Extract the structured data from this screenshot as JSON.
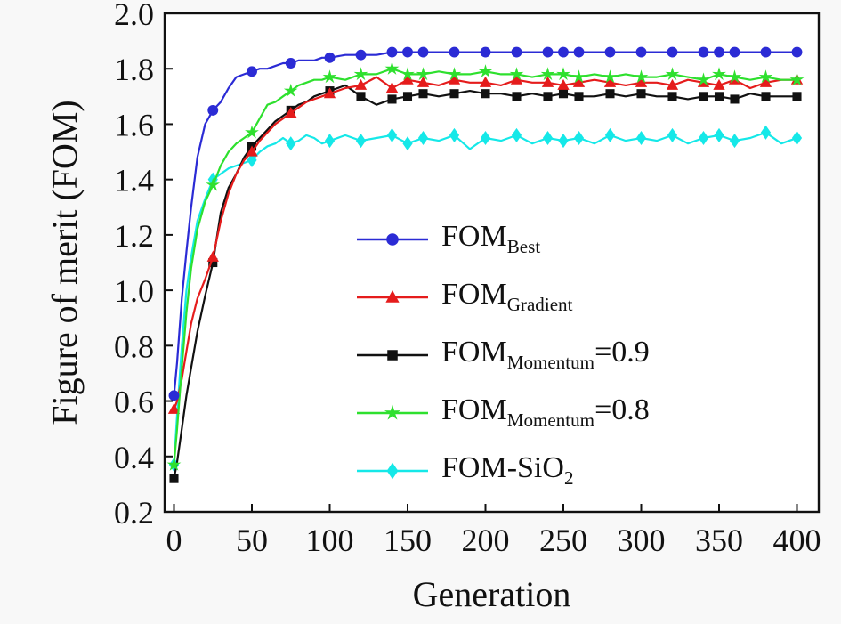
{
  "figure": {
    "background": "#f8f8f8",
    "plot_background": "#ffffff",
    "frame_color": "#111111"
  },
  "chart_data": {
    "type": "line",
    "title": "",
    "xlabel": "Generation",
    "ylabel": "Figure of merit (FOM)",
    "xlim": [
      -6,
      414
    ],
    "ylim": [
      0.2,
      2.0
    ],
    "grid": false,
    "legend_position": "inside-center-right",
    "xticks": [
      0,
      50,
      100,
      150,
      200,
      250,
      300,
      350,
      400
    ],
    "xtick_labels": [
      "0",
      "50",
      "100",
      "150",
      "200",
      "250",
      "300",
      "350",
      "400"
    ],
    "yticks": [
      0.2,
      0.4,
      0.6,
      0.8,
      1.0,
      1.2,
      1.4,
      1.6,
      1.8,
      2.0
    ],
    "ytick_labels": [
      "0.2",
      "0.4",
      "0.6",
      "0.8",
      "1.0",
      "1.2",
      "1.4",
      "1.6",
      "1.8",
      "2.0"
    ],
    "x": [
      0,
      2,
      5,
      8,
      11,
      15,
      20,
      25,
      30,
      35,
      40,
      45,
      50,
      55,
      60,
      65,
      70,
      75,
      80,
      85,
      90,
      95,
      100,
      110,
      120,
      130,
      140,
      150,
      160,
      170,
      180,
      190,
      200,
      210,
      220,
      230,
      240,
      250,
      260,
      270,
      280,
      290,
      300,
      310,
      320,
      330,
      340,
      350,
      360,
      370,
      380,
      390,
      400
    ],
    "series": [
      {
        "key": "fom-best",
        "name": "FOM_Best",
        "label": {
          "main": "FOM",
          "sub": "Best",
          "suffix": ""
        },
        "color": "#2b2bd5",
        "marker": "circle",
        "values": [
          0.62,
          0.74,
          0.97,
          1.14,
          1.3,
          1.48,
          1.6,
          1.65,
          1.68,
          1.73,
          1.77,
          1.78,
          1.79,
          1.8,
          1.8,
          1.81,
          1.82,
          1.82,
          1.83,
          1.83,
          1.83,
          1.84,
          1.84,
          1.85,
          1.85,
          1.85,
          1.86,
          1.86,
          1.86,
          1.86,
          1.86,
          1.86,
          1.86,
          1.86,
          1.86,
          1.86,
          1.86,
          1.86,
          1.86,
          1.86,
          1.86,
          1.86,
          1.86,
          1.86,
          1.86,
          1.86,
          1.86,
          1.86,
          1.86,
          1.86,
          1.86,
          1.86,
          1.86
        ]
      },
      {
        "key": "fom-gradient",
        "name": "FOM_Gradient",
        "label": {
          "main": "FOM",
          "sub": "Gradient",
          "suffix": ""
        },
        "color": "#e51c1c",
        "marker": "triangle",
        "values": [
          0.57,
          0.6,
          0.68,
          0.78,
          0.88,
          0.97,
          1.04,
          1.12,
          1.25,
          1.35,
          1.42,
          1.47,
          1.5,
          1.54,
          1.57,
          1.6,
          1.62,
          1.64,
          1.66,
          1.68,
          1.69,
          1.7,
          1.71,
          1.73,
          1.74,
          1.77,
          1.73,
          1.76,
          1.75,
          1.74,
          1.76,
          1.75,
          1.75,
          1.74,
          1.76,
          1.75,
          1.75,
          1.74,
          1.75,
          1.76,
          1.75,
          1.74,
          1.75,
          1.75,
          1.74,
          1.76,
          1.75,
          1.74,
          1.76,
          1.73,
          1.75,
          1.76,
          1.76
        ]
      },
      {
        "key": "fom-momentum-09",
        "name": "FOM_Momentum=0.9",
        "label": {
          "main": "FOM",
          "sub": "Momentum",
          "suffix": "=0.9"
        },
        "color": "#111111",
        "marker": "square",
        "values": [
          0.32,
          0.38,
          0.5,
          0.62,
          0.72,
          0.85,
          0.98,
          1.1,
          1.28,
          1.37,
          1.42,
          1.48,
          1.52,
          1.55,
          1.58,
          1.61,
          1.63,
          1.65,
          1.67,
          1.68,
          1.7,
          1.71,
          1.72,
          1.74,
          1.7,
          1.67,
          1.69,
          1.7,
          1.71,
          1.7,
          1.71,
          1.72,
          1.71,
          1.71,
          1.7,
          1.71,
          1.7,
          1.71,
          1.7,
          1.7,
          1.71,
          1.7,
          1.71,
          1.7,
          1.7,
          1.69,
          1.7,
          1.7,
          1.69,
          1.71,
          1.7,
          1.7,
          1.7
        ]
      },
      {
        "key": "fom-momentum-08",
        "name": "FOM_Momentum=0.8",
        "label": {
          "main": "FOM",
          "sub": "Momentum",
          "suffix": "=0.8"
        },
        "color": "#2ee02e",
        "marker": "star",
        "values": [
          0.37,
          0.5,
          0.72,
          0.92,
          1.08,
          1.22,
          1.32,
          1.38,
          1.45,
          1.5,
          1.53,
          1.55,
          1.57,
          1.62,
          1.67,
          1.68,
          1.7,
          1.72,
          1.74,
          1.75,
          1.76,
          1.76,
          1.77,
          1.76,
          1.78,
          1.78,
          1.8,
          1.78,
          1.78,
          1.79,
          1.78,
          1.78,
          1.79,
          1.78,
          1.78,
          1.77,
          1.78,
          1.78,
          1.77,
          1.78,
          1.77,
          1.78,
          1.77,
          1.77,
          1.78,
          1.77,
          1.76,
          1.78,
          1.77,
          1.76,
          1.77,
          1.76,
          1.76
        ]
      },
      {
        "key": "fom-sio2",
        "name": "FOM-SiO2",
        "label": {
          "main": "FOM-SiO",
          "sub": "2",
          "suffix": ""
        },
        "color": "#15e8e8",
        "marker": "diamond",
        "values": [
          0.37,
          0.55,
          0.8,
          1.0,
          1.12,
          1.25,
          1.33,
          1.4,
          1.42,
          1.44,
          1.45,
          1.46,
          1.47,
          1.5,
          1.52,
          1.53,
          1.55,
          1.53,
          1.54,
          1.56,
          1.55,
          1.53,
          1.54,
          1.56,
          1.54,
          1.55,
          1.56,
          1.53,
          1.55,
          1.54,
          1.56,
          1.51,
          1.55,
          1.54,
          1.56,
          1.53,
          1.55,
          1.54,
          1.55,
          1.53,
          1.56,
          1.54,
          1.55,
          1.54,
          1.56,
          1.53,
          1.55,
          1.56,
          1.54,
          1.55,
          1.57,
          1.53,
          1.55
        ]
      }
    ]
  }
}
